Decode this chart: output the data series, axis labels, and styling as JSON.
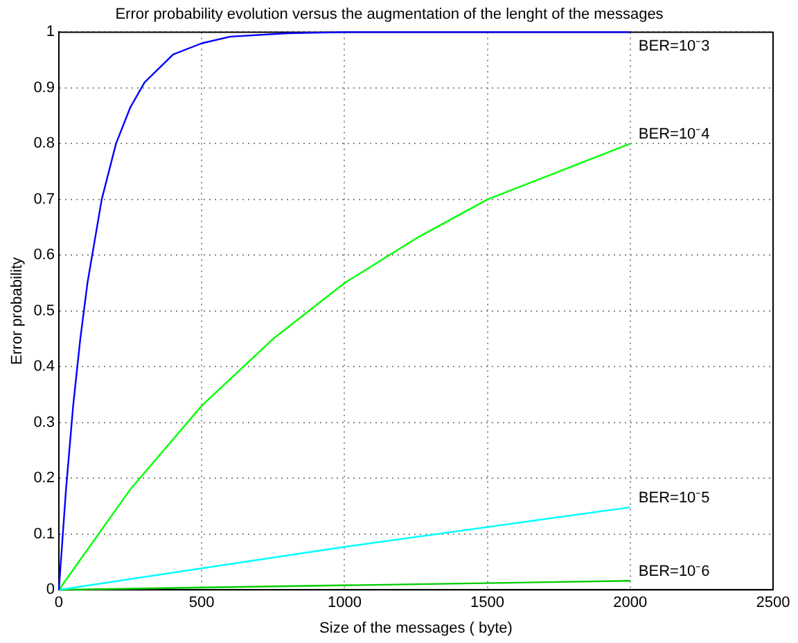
{
  "chart_data": {
    "type": "line",
    "title": "Error probability evolution versus the augmentation of the lenght of the messages",
    "xlabel": "Size of the messages ( byte)",
    "ylabel": "Error probability",
    "series": [
      {
        "name": "BER=10⁻3",
        "color": "#0000ff",
        "x": [
          0,
          25,
          50,
          75,
          100,
          150,
          200,
          250,
          300,
          400,
          500,
          600,
          800,
          1000,
          1500,
          2000
        ],
        "values": [
          0,
          0.18,
          0.33,
          0.45,
          0.55,
          0.7,
          0.8,
          0.865,
          0.91,
          0.96,
          0.98,
          0.992,
          0.998,
          1,
          1,
          1
        ]
      },
      {
        "name": "BER=10⁻4",
        "color": "#00ff00",
        "x": [
          0,
          250,
          500,
          750,
          1000,
          1250,
          1500,
          1750,
          2000
        ],
        "values": [
          0,
          0.18,
          0.33,
          0.45,
          0.55,
          0.63,
          0.7,
          0.75,
          0.8
        ]
      },
      {
        "name": "BER=10⁻5",
        "color": "#00ffff",
        "x": [
          0,
          1000,
          2000
        ],
        "values": [
          0,
          0.077,
          0.148
        ]
      },
      {
        "name": "BER=10⁻6",
        "color": "#00cc00",
        "x": [
          0,
          2000
        ],
        "values": [
          0,
          0.016
        ]
      }
    ],
    "xlim": [
      0,
      2500
    ],
    "xticks": [
      0,
      500,
      1000,
      1500,
      2000,
      2500
    ],
    "ylim": [
      0,
      1
    ],
    "yticks": [
      0,
      0.1,
      0.2,
      0.3,
      0.4,
      0.5,
      0.6,
      0.7,
      0.8,
      0.9,
      1
    ],
    "grid": true,
    "legend": false,
    "marker": "none",
    "line_style": "solid"
  }
}
